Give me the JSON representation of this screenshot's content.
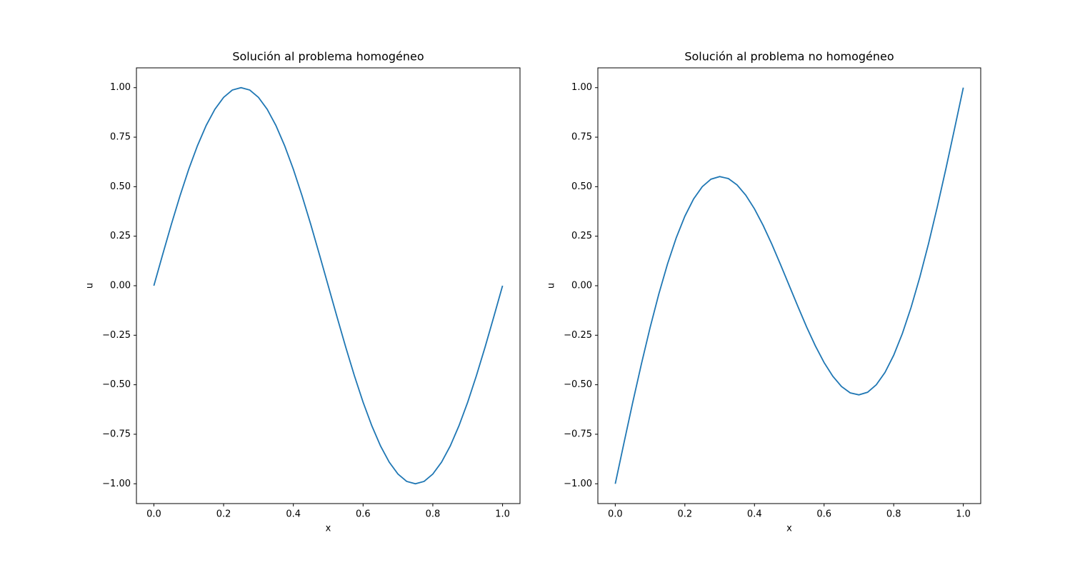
{
  "chart_data": [
    {
      "type": "line",
      "title": "Solución al problema homogéneo",
      "x_label": "x",
      "y_label": "u",
      "x": [
        0,
        0.025,
        0.05,
        0.075,
        0.1,
        0.125,
        0.15,
        0.175,
        0.2,
        0.225,
        0.25,
        0.275,
        0.3,
        0.325,
        0.35,
        0.375,
        0.4,
        0.425,
        0.45,
        0.475,
        0.5,
        0.525,
        0.55,
        0.575,
        0.6,
        0.625,
        0.65,
        0.675,
        0.7,
        0.725,
        0.75,
        0.775,
        0.8,
        0.825,
        0.85,
        0.875,
        0.9,
        0.925,
        0.95,
        0.975,
        1
      ],
      "series": [
        {
          "color": "#1f77b4",
          "values": [
            0,
            0.156,
            0.309,
            0.454,
            0.588,
            0.707,
            0.809,
            0.891,
            0.951,
            0.988,
            1,
            0.988,
            0.951,
            0.891,
            0.809,
            0.707,
            0.588,
            0.454,
            0.309,
            0.156,
            0,
            -0.156,
            -0.309,
            -0.454,
            -0.588,
            -0.707,
            -0.809,
            -0.891,
            -0.951,
            -0.988,
            -1,
            -0.988,
            -0.951,
            -0.891,
            -0.809,
            -0.707,
            -0.588,
            -0.454,
            -0.309,
            -0.156,
            0
          ]
        }
      ],
      "xlim": [
        -0.05,
        1.05
      ],
      "ylim": [
        -1.1,
        1.1
      ],
      "xticks": [
        {
          "value": 0,
          "label": "0.0"
        },
        {
          "value": 0.2,
          "label": "0.2"
        },
        {
          "value": 0.4,
          "label": "0.4"
        },
        {
          "value": 0.6,
          "label": "0.6"
        },
        {
          "value": 0.8,
          "label": "0.8"
        },
        {
          "value": 1,
          "label": "1.0"
        }
      ],
      "yticks": [
        {
          "value": -1,
          "label": "−1.00"
        },
        {
          "value": -0.75,
          "label": "−0.75"
        },
        {
          "value": -0.5,
          "label": "−0.50"
        },
        {
          "value": -0.25,
          "label": "−0.25"
        },
        {
          "value": 0,
          "label": "0.00"
        },
        {
          "value": 0.25,
          "label": "0.25"
        },
        {
          "value": 0.5,
          "label": "0.50"
        },
        {
          "value": 0.75,
          "label": "0.75"
        },
        {
          "value": 1,
          "label": "1.00"
        }
      ]
    },
    {
      "type": "line",
      "title": "Solución al problema no homogéneo",
      "x_label": "x",
      "y_label": "u",
      "x": [
        0,
        0.025,
        0.05,
        0.075,
        0.1,
        0.125,
        0.15,
        0.175,
        0.2,
        0.225,
        0.25,
        0.275,
        0.3,
        0.325,
        0.35,
        0.375,
        0.4,
        0.425,
        0.45,
        0.475,
        0.5,
        0.525,
        0.55,
        0.575,
        0.6,
        0.625,
        0.65,
        0.675,
        0.7,
        0.725,
        0.75,
        0.775,
        0.8,
        0.825,
        0.85,
        0.875,
        0.9,
        0.925,
        0.95,
        0.975,
        1
      ],
      "series": [
        {
          "color": "#1f77b4",
          "values": [
            -1,
            -0.794,
            -0.591,
            -0.396,
            -0.212,
            -0.043,
            0.109,
            0.241,
            0.351,
            0.438,
            0.5,
            0.538,
            0.551,
            0.541,
            0.509,
            0.457,
            0.388,
            0.304,
            0.209,
            0.106,
            0,
            -0.106,
            -0.209,
            -0.304,
            -0.388,
            -0.457,
            -0.509,
            -0.541,
            -0.551,
            -0.538,
            -0.5,
            -0.438,
            -0.351,
            -0.241,
            -0.109,
            0.043,
            0.212,
            0.396,
            0.591,
            0.794,
            1
          ]
        }
      ],
      "xlim": [
        -0.05,
        1.05
      ],
      "ylim": [
        -1.1,
        1.1
      ],
      "xticks": [
        {
          "value": 0,
          "label": "0.0"
        },
        {
          "value": 0.2,
          "label": "0.2"
        },
        {
          "value": 0.4,
          "label": "0.4"
        },
        {
          "value": 0.6,
          "label": "0.6"
        },
        {
          "value": 0.8,
          "label": "0.8"
        },
        {
          "value": 1,
          "label": "1.0"
        }
      ],
      "yticks": [
        {
          "value": -1,
          "label": "−1.00"
        },
        {
          "value": -0.75,
          "label": "−0.75"
        },
        {
          "value": -0.5,
          "label": "−0.50"
        },
        {
          "value": -0.25,
          "label": "−0.25"
        },
        {
          "value": 0,
          "label": "0.00"
        },
        {
          "value": 0.25,
          "label": "0.25"
        },
        {
          "value": 0.5,
          "label": "0.50"
        },
        {
          "value": 0.75,
          "label": "0.75"
        },
        {
          "value": 1,
          "label": "1.00"
        }
      ]
    }
  ]
}
